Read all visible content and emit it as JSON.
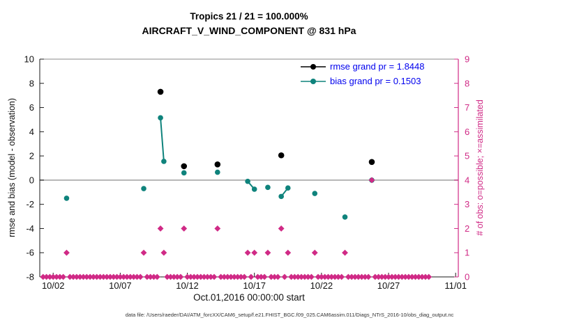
{
  "footer": "data file: /Users/raeder/DAI/ATM_forcXX/CAM6_setup/f.e21.FHIST_BGC.f09_025.CAM6assim.011/Diags_NTrS_2016-10/obs_diag_output.nc",
  "colors": {
    "axis": "#1a1a1a",
    "box_top": "#888888",
    "zero_line": "#b5b5b5",
    "obs_pink": "#d02a86",
    "bias_teal": "#0f837c",
    "rmse_black": "#000000",
    "legend_text": "#0000ee"
  },
  "chart_data": {
    "type": "scatter",
    "title": "Tropics 21 / 21 = 100.000%",
    "subtitle": "AIRCRAFT_V_WIND_COMPONENT @ 831 hPa",
    "x_axis": {
      "label": "Oct.01,2016 00:00:00 start",
      "tick_labels": [
        "10/02",
        "10/07",
        "10/12",
        "10/17",
        "10/22",
        "10/27",
        "11/01"
      ],
      "tick_days": [
        2,
        7,
        12,
        17,
        22,
        27,
        32
      ],
      "range_days": [
        1,
        32.2
      ]
    },
    "y_left": {
      "label": "rmse and bias (model - observation)",
      "range": [
        -8,
        10
      ],
      "ticks": [
        10,
        8,
        6,
        4,
        2,
        0,
        -2,
        -4,
        -6,
        -8
      ],
      "zero_line": 0
    },
    "y_right": {
      "label": "# of obs: o=possible; ×=assimilated",
      "range": [
        0,
        9
      ],
      "ticks": [
        9,
        8,
        7,
        6,
        5,
        4,
        3,
        2,
        1,
        0
      ]
    },
    "series": [
      {
        "id": "bias",
        "legend": "bias grand pr = 0.1503",
        "axis": "left",
        "marker": "circle",
        "marker_size": 3.8,
        "color": "#0f837c",
        "connect_gap_days": 0.55,
        "points": [
          [
            3.0,
            -1.5
          ],
          [
            8.75,
            -0.7
          ],
          [
            10.0,
            5.15
          ],
          [
            10.25,
            1.55
          ],
          [
            11.75,
            0.6
          ],
          [
            14.25,
            0.65
          ],
          [
            16.5,
            -0.1
          ],
          [
            17.0,
            -0.75
          ],
          [
            18.0,
            -0.6
          ],
          [
            19.0,
            -1.35
          ],
          [
            19.5,
            -0.65
          ],
          [
            21.5,
            -1.1
          ],
          [
            23.75,
            -3.05
          ],
          [
            25.75,
            0.0
          ]
        ]
      },
      {
        "id": "rmse",
        "legend": "rmse grand pr = 1.8448",
        "axis": "left",
        "marker": "circle",
        "marker_size": 4.3,
        "color": "#000000",
        "points": [
          [
            10.0,
            7.3
          ],
          [
            11.75,
            1.15
          ],
          [
            14.25,
            1.3
          ],
          [
            19.0,
            2.05
          ],
          [
            25.75,
            1.5
          ]
        ]
      },
      {
        "id": "obs_assimilated",
        "legend": null,
        "axis": "right",
        "marker": "diamond",
        "marker_size": 4.4,
        "color": "#d02a86",
        "points": [
          [
            3.0,
            1
          ],
          [
            8.75,
            1
          ],
          [
            10.0,
            2
          ],
          [
            10.25,
            1
          ],
          [
            11.75,
            2
          ],
          [
            14.25,
            2
          ],
          [
            16.5,
            1
          ],
          [
            17.0,
            1
          ],
          [
            18.0,
            1
          ],
          [
            19.0,
            2
          ],
          [
            19.5,
            1
          ],
          [
            21.5,
            1
          ],
          [
            23.75,
            1
          ],
          [
            25.75,
            4
          ]
        ],
        "zero_row": {
          "start": 1.25,
          "end": 30.0,
          "step": 0.25,
          "value": 0
        }
      }
    ]
  }
}
